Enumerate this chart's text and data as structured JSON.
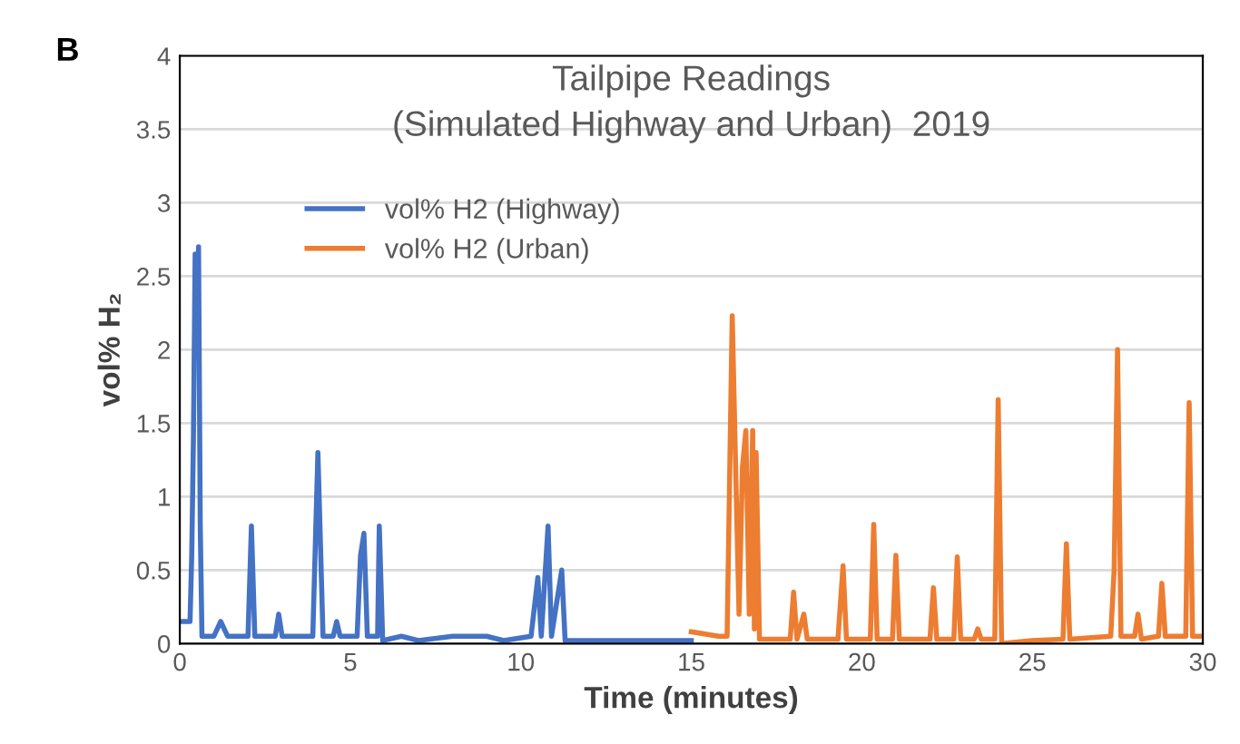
{
  "chart_data": {
    "type": "line",
    "title": "Tailpipe Readings\n(Simulated Highway and Urban)  2019",
    "xlabel": "Time (minutes)",
    "ylabel": "vol% H₂",
    "annotations": [
      "B"
    ],
    "xlim": [
      0,
      30
    ],
    "xticks": [
      0,
      5,
      10,
      15,
      20,
      25,
      30
    ],
    "ylim": [
      0,
      4
    ],
    "yticks": [
      0,
      0.5,
      1,
      1.5,
      2,
      2.5,
      3,
      3.5,
      4
    ],
    "grid": "y",
    "legend": "top left",
    "marker": "none",
    "line_style": "solid",
    "series": [
      {
        "name": "vol% H2 (Highway)",
        "color": "#4472c4",
        "x": [
          0,
          0.3,
          0.35,
          0.4,
          0.45,
          0.5,
          0.55,
          0.6,
          0.65,
          1.0,
          1.2,
          1.4,
          2.0,
          2.1,
          2.2,
          2.8,
          2.9,
          3.0,
          3.9,
          4.05,
          4.2,
          4.5,
          4.6,
          4.7,
          5.2,
          5.3,
          5.4,
          5.5,
          5.8,
          5.85,
          5.95,
          6.5,
          7,
          8,
          9,
          9.5,
          10.3,
          10.5,
          10.6,
          10.8,
          10.9,
          11.2,
          11.3,
          13,
          15
        ],
        "values": [
          0.15,
          0.15,
          0.6,
          1.4,
          2.65,
          2.0,
          2.7,
          0.8,
          0.05,
          0.05,
          0.15,
          0.05,
          0.05,
          0.8,
          0.05,
          0.05,
          0.2,
          0.05,
          0.05,
          1.3,
          0.05,
          0.05,
          0.15,
          0.05,
          0.05,
          0.6,
          0.75,
          0.05,
          0.05,
          0.8,
          0.02,
          0.05,
          0.02,
          0.05,
          0.05,
          0.02,
          0.05,
          0.45,
          0.05,
          0.8,
          0.05,
          0.5,
          0.02,
          0.02,
          0.02
        ]
      },
      {
        "name": "vol% H2 (Urban)",
        "color": "#ed7d31",
        "x": [
          15,
          15.8,
          16.05,
          16.2,
          16.3,
          16.4,
          16.5,
          16.6,
          16.7,
          16.8,
          16.85,
          16.9,
          17.0,
          17.9,
          18.0,
          18.1,
          18.3,
          18.4,
          19.3,
          19.45,
          19.55,
          20.25,
          20.35,
          20.45,
          20.9,
          21.0,
          21.1,
          22.0,
          22.1,
          22.2,
          22.7,
          22.8,
          22.9,
          23.3,
          23.4,
          23.5,
          23.9,
          24.0,
          24.1,
          25.0,
          25.9,
          26.0,
          26.1,
          27.3,
          27.4,
          27.5,
          27.6,
          28.0,
          28.1,
          28.2,
          28.7,
          28.8,
          28.9,
          29.5,
          29.6,
          29.7,
          30
        ],
        "values": [
          0.08,
          0.05,
          0.05,
          2.23,
          1.2,
          0.2,
          1.2,
          1.45,
          0.2,
          1.45,
          0.1,
          1.3,
          0.03,
          0.03,
          0.35,
          0.03,
          0.2,
          0.03,
          0.03,
          0.53,
          0.03,
          0.03,
          0.81,
          0.03,
          0.03,
          0.6,
          0.03,
          0.03,
          0.38,
          0.03,
          0.03,
          0.59,
          0.03,
          0.03,
          0.1,
          0.03,
          0.03,
          1.66,
          0.0,
          0.02,
          0.03,
          0.68,
          0.03,
          0.05,
          0.5,
          2.0,
          0.05,
          0.05,
          0.2,
          0.03,
          0.05,
          0.41,
          0.05,
          0.05,
          1.64,
          0.05,
          0.05
        ]
      }
    ]
  }
}
